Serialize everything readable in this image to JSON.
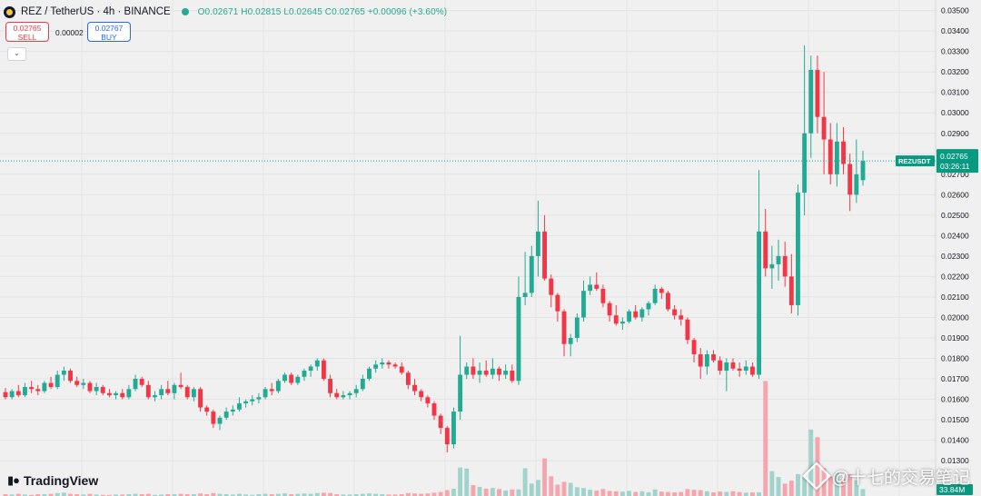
{
  "header": {
    "symbol_title": "REZ / TetherUS · 4h · BINANCE",
    "open_text": "O0.02671",
    "high_text": "H0.02815",
    "low_text": "L0.02645",
    "close_text": "C0.02765",
    "change_text": "+0.00096 (+3.60%)"
  },
  "trade": {
    "sell_price": "0.02765",
    "sell_label": "SELL",
    "spread": "0.00002",
    "buy_price": "0.02767",
    "buy_label": "BUY"
  },
  "branding": {
    "tradingview": "TradingView",
    "watermark": "@十七的交易笔记"
  },
  "colors": {
    "up": "#22ab94",
    "down": "#f23645",
    "volume_up": "#9fd3cb",
    "volume_down": "#f5a5ab",
    "price_label_bg": "#089981",
    "grid": "#e3e3e3",
    "background": "#f0f0f0"
  },
  "chart_data": {
    "type": "candlestick",
    "symbol": "REZUSDT",
    "last_price": "0.02765",
    "countdown": "03:26:11",
    "volume_label": "33.84M",
    "yrange": [
      0.01225,
      0.03525
    ],
    "yticks": [
      "0.03500",
      "0.03400",
      "0.03300",
      "0.03200",
      "0.03100",
      "0.03000",
      "0.02900",
      "0.02800",
      "0.02700",
      "0.02600",
      "0.02500",
      "0.02400",
      "0.02300",
      "0.02200",
      "0.02100",
      "0.02000",
      "0.01900",
      "0.01800",
      "0.01700",
      "0.01600",
      "0.01500",
      "0.01400",
      "0.01300"
    ],
    "grid": true,
    "volume_max": 33.84,
    "candles": [
      [
        0.01635,
        0.01655,
        0.016,
        0.0161
      ],
      [
        0.0161,
        0.0165,
        0.016,
        0.0164
      ],
      [
        0.0164,
        0.0167,
        0.0161,
        0.0162
      ],
      [
        0.0162,
        0.0168,
        0.0161,
        0.0166
      ],
      [
        0.0166,
        0.0169,
        0.0163,
        0.0165
      ],
      [
        0.0165,
        0.0167,
        0.0162,
        0.0164
      ],
      [
        0.0164,
        0.0169,
        0.0163,
        0.0168
      ],
      [
        0.0168,
        0.0171,
        0.0165,
        0.0166
      ],
      [
        0.0166,
        0.0174,
        0.0165,
        0.0172
      ],
      [
        0.0172,
        0.0176,
        0.0169,
        0.0174
      ],
      [
        0.0174,
        0.0175,
        0.0168,
        0.0169
      ],
      [
        0.0169,
        0.0171,
        0.0166,
        0.0167
      ],
      [
        0.0167,
        0.017,
        0.0165,
        0.0168
      ],
      [
        0.0168,
        0.0169,
        0.0163,
        0.0164
      ],
      [
        0.0164,
        0.0168,
        0.0162,
        0.0166
      ],
      [
        0.0166,
        0.0167,
        0.0162,
        0.0163
      ],
      [
        0.0163,
        0.0165,
        0.0161,
        0.0162
      ],
      [
        0.0162,
        0.0164,
        0.016,
        0.0163
      ],
      [
        0.0163,
        0.0165,
        0.016,
        0.0161
      ],
      [
        0.0161,
        0.0167,
        0.016,
        0.0165
      ],
      [
        0.0165,
        0.0172,
        0.0164,
        0.017
      ],
      [
        0.017,
        0.0171,
        0.0166,
        0.0167
      ],
      [
        0.0167,
        0.0169,
        0.016,
        0.0161
      ],
      [
        0.0161,
        0.0164,
        0.0159,
        0.0162
      ],
      [
        0.0162,
        0.0167,
        0.016,
        0.0165
      ],
      [
        0.0165,
        0.0169,
        0.0162,
        0.0163
      ],
      [
        0.0163,
        0.0168,
        0.016,
        0.0167
      ],
      [
        0.0167,
        0.0173,
        0.0165,
        0.0166
      ],
      [
        0.0166,
        0.0167,
        0.016,
        0.0161
      ],
      [
        0.0161,
        0.0166,
        0.0159,
        0.0165
      ],
      [
        0.0165,
        0.0166,
        0.0154,
        0.0156
      ],
      [
        0.0156,
        0.0157,
        0.0152,
        0.0154
      ],
      [
        0.0154,
        0.0155,
        0.0146,
        0.0148
      ],
      [
        0.0148,
        0.0152,
        0.0145,
        0.0151
      ],
      [
        0.0151,
        0.0156,
        0.015,
        0.0154
      ],
      [
        0.0154,
        0.0157,
        0.0152,
        0.0155
      ],
      [
        0.0155,
        0.0161,
        0.0154,
        0.0158
      ],
      [
        0.0158,
        0.016,
        0.0156,
        0.0159
      ],
      [
        0.0159,
        0.0162,
        0.0157,
        0.016
      ],
      [
        0.016,
        0.0163,
        0.0158,
        0.0161
      ],
      [
        0.0161,
        0.0166,
        0.016,
        0.0165
      ],
      [
        0.0165,
        0.0168,
        0.0162,
        0.0164
      ],
      [
        0.0164,
        0.017,
        0.0163,
        0.0169
      ],
      [
        0.0169,
        0.0173,
        0.0168,
        0.0172
      ],
      [
        0.0172,
        0.0173,
        0.0167,
        0.0168
      ],
      [
        0.0168,
        0.0172,
        0.0167,
        0.0171
      ],
      [
        0.0171,
        0.0175,
        0.0169,
        0.0174
      ],
      [
        0.0174,
        0.0177,
        0.0171,
        0.0176
      ],
      [
        0.0176,
        0.018,
        0.0174,
        0.0179
      ],
      [
        0.0179,
        0.018,
        0.0169,
        0.017
      ],
      [
        0.017,
        0.0172,
        0.0161,
        0.0163
      ],
      [
        0.0163,
        0.0165,
        0.016,
        0.0161
      ],
      [
        0.0161,
        0.0164,
        0.016,
        0.0162
      ],
      [
        0.0162,
        0.0164,
        0.016,
        0.0163
      ],
      [
        0.0163,
        0.0167,
        0.0161,
        0.0165
      ],
      [
        0.0165,
        0.0172,
        0.0164,
        0.017
      ],
      [
        0.017,
        0.0176,
        0.0169,
        0.0175
      ],
      [
        0.0175,
        0.0179,
        0.0173,
        0.0177
      ],
      [
        0.0177,
        0.018,
        0.0175,
        0.0178
      ],
      [
        0.0178,
        0.0179,
        0.0175,
        0.0177
      ],
      [
        0.0177,
        0.0178,
        0.0175,
        0.0176
      ],
      [
        0.0176,
        0.0178,
        0.0172,
        0.0173
      ],
      [
        0.0173,
        0.0174,
        0.0165,
        0.0167
      ],
      [
        0.0167,
        0.017,
        0.0162,
        0.0164
      ],
      [
        0.0164,
        0.0165,
        0.0159,
        0.0161
      ],
      [
        0.0161,
        0.0162,
        0.0156,
        0.0158
      ],
      [
        0.0158,
        0.0159,
        0.015,
        0.0152
      ],
      [
        0.0152,
        0.0153,
        0.0143,
        0.0146
      ],
      [
        0.0146,
        0.0147,
        0.0134,
        0.0138
      ],
      [
        0.0138,
        0.0156,
        0.0136,
        0.0154
      ],
      [
        0.0154,
        0.0191,
        0.015,
        0.0172
      ],
      [
        0.0172,
        0.0178,
        0.017,
        0.0176
      ],
      [
        0.0176,
        0.018,
        0.017,
        0.0172
      ],
      [
        0.0172,
        0.0178,
        0.0168,
        0.0174
      ],
      [
        0.0174,
        0.0179,
        0.0171,
        0.0172
      ],
      [
        0.0172,
        0.018,
        0.017,
        0.0175
      ],
      [
        0.0175,
        0.0176,
        0.0169,
        0.0172
      ],
      [
        0.0172,
        0.0177,
        0.017,
        0.0174
      ],
      [
        0.0174,
        0.0177,
        0.0168,
        0.0169
      ],
      [
        0.0169,
        0.022,
        0.0167,
        0.021
      ],
      [
        0.021,
        0.0232,
        0.0206,
        0.0212
      ],
      [
        0.0212,
        0.0235,
        0.021,
        0.023
      ],
      [
        0.023,
        0.0257,
        0.022,
        0.0242
      ],
      [
        0.0242,
        0.025,
        0.0218,
        0.0219
      ],
      [
        0.0219,
        0.0221,
        0.0205,
        0.0211
      ],
      [
        0.0211,
        0.0212,
        0.0198,
        0.0203
      ],
      [
        0.0203,
        0.0204,
        0.0181,
        0.0187
      ],
      [
        0.0187,
        0.0192,
        0.0181,
        0.019
      ],
      [
        0.019,
        0.0202,
        0.0188,
        0.02
      ],
      [
        0.02,
        0.0218,
        0.0198,
        0.0213
      ],
      [
        0.0213,
        0.022,
        0.0211,
        0.0216
      ],
      [
        0.0216,
        0.0222,
        0.0213,
        0.0214
      ],
      [
        0.0214,
        0.0216,
        0.0205,
        0.0207
      ],
      [
        0.0207,
        0.0208,
        0.0198,
        0.0201
      ],
      [
        0.0201,
        0.0206,
        0.0196,
        0.0197
      ],
      [
        0.0197,
        0.02,
        0.0194,
        0.0198
      ],
      [
        0.0198,
        0.0204,
        0.0197,
        0.0203
      ],
      [
        0.0203,
        0.0206,
        0.0199,
        0.02
      ],
      [
        0.02,
        0.0205,
        0.0198,
        0.0204
      ],
      [
        0.0204,
        0.0208,
        0.0201,
        0.0207
      ],
      [
        0.0207,
        0.0216,
        0.0206,
        0.0214
      ],
      [
        0.0214,
        0.0215,
        0.0209,
        0.0212
      ],
      [
        0.0212,
        0.0213,
        0.0203,
        0.0204
      ],
      [
        0.0204,
        0.0206,
        0.0199,
        0.0201
      ],
      [
        0.0201,
        0.0204,
        0.0196,
        0.0199
      ],
      [
        0.0199,
        0.02,
        0.0187,
        0.0189
      ],
      [
        0.0189,
        0.019,
        0.0178,
        0.0182
      ],
      [
        0.0182,
        0.0185,
        0.017,
        0.0176
      ],
      [
        0.0176,
        0.0184,
        0.0172,
        0.0182
      ],
      [
        0.0182,
        0.0184,
        0.0178,
        0.0179
      ],
      [
        0.0179,
        0.0181,
        0.0172,
        0.0174
      ],
      [
        0.0174,
        0.018,
        0.0164,
        0.0178
      ],
      [
        0.0178,
        0.018,
        0.0174,
        0.0175
      ],
      [
        0.0175,
        0.0178,
        0.0171,
        0.0174
      ],
      [
        0.0174,
        0.0179,
        0.0172,
        0.0176
      ],
      [
        0.0176,
        0.0178,
        0.0171,
        0.0172
      ],
      [
        0.0172,
        0.0272,
        0.017,
        0.0242
      ],
      [
        0.0242,
        0.0253,
        0.022,
        0.0224
      ],
      [
        0.0224,
        0.0235,
        0.0214,
        0.0226
      ],
      [
        0.0226,
        0.0238,
        0.0218,
        0.023
      ],
      [
        0.023,
        0.0237,
        0.0215,
        0.022
      ],
      [
        0.022,
        0.0231,
        0.0202,
        0.0206
      ],
      [
        0.0206,
        0.0265,
        0.0201,
        0.0261
      ],
      [
        0.0261,
        0.0333,
        0.025,
        0.029
      ],
      [
        0.029,
        0.0328,
        0.0278,
        0.0321
      ],
      [
        0.0321,
        0.0328,
        0.029,
        0.0298
      ],
      [
        0.0298,
        0.032,
        0.027,
        0.0287
      ],
      [
        0.0287,
        0.0295,
        0.0265,
        0.027
      ],
      [
        0.027,
        0.0295,
        0.0264,
        0.0286
      ],
      [
        0.0286,
        0.0293,
        0.027,
        0.0275
      ],
      [
        0.0275,
        0.028,
        0.0252,
        0.026
      ],
      [
        0.026,
        0.0287,
        0.0256,
        0.027
      ],
      [
        0.02671,
        0.02815,
        0.02645,
        0.02765
      ]
    ],
    "volumes": [
      0.5,
      0.4,
      0.6,
      0.4,
      0.3,
      0.5,
      0.5,
      0.6,
      0.8,
      0.9,
      0.6,
      0.5,
      0.4,
      0.6,
      0.4,
      0.3,
      0.3,
      0.4,
      0.4,
      0.5,
      0.6,
      0.5,
      0.6,
      0.3,
      0.4,
      0.5,
      0.5,
      0.6,
      0.5,
      0.5,
      0.7,
      0.5,
      0.8,
      0.6,
      0.5,
      0.4,
      0.6,
      0.4,
      0.3,
      0.5,
      0.6,
      0.5,
      0.6,
      0.7,
      0.5,
      0.6,
      0.7,
      0.6,
      0.8,
      0.9,
      0.8,
      0.5,
      0.4,
      0.4,
      0.5,
      0.6,
      0.7,
      0.6,
      0.5,
      0.4,
      0.4,
      0.5,
      0.8,
      0.7,
      0.6,
      0.7,
      0.9,
      1.1,
      1.6,
      2.0,
      7.8,
      7.5,
      3.0,
      2.5,
      2.0,
      2.2,
      1.9,
      1.5,
      1.8,
      1.8,
      7.6,
      3.4,
      4.4,
      10.3,
      5.4,
      3.1,
      3.9,
      3.6,
      2.4,
      2.2,
      1.7,
      1.5,
      1.9,
      1.4,
      1.3,
      1.2,
      1.4,
      1.1,
      1.3,
      1.0,
      1.8,
      1.2,
      1.1,
      1.0,
      1.1,
      1.9,
      1.7,
      1.6,
      1.3,
      1.0,
      1.2,
      1.1,
      1.3,
      1.1,
      0.9,
      1.0,
      1.0,
      31.5,
      6.8,
      5.2,
      3.4,
      4.2,
      6.0,
      5.3,
      18.2,
      16.1,
      7.6,
      5.4,
      6.4,
      4.6,
      6.0,
      4.3,
      1.9,
      2.6,
      3.0
    ]
  }
}
